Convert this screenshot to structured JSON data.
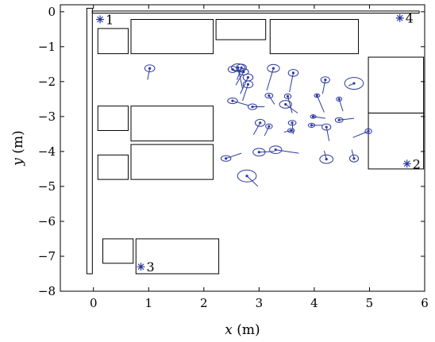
{
  "chart_data": {
    "type": "scatter",
    "xlabel": {
      "var": "x",
      "unit": " (m)"
    },
    "ylabel": {
      "var": "y",
      "unit": " (m)"
    },
    "xlim": [
      -0.6,
      6
    ],
    "ylim": [
      -8,
      0.2
    ],
    "xticks": [
      0,
      1,
      2,
      3,
      4,
      5,
      6
    ],
    "yticks": [
      0,
      -1,
      -2,
      -3,
      -4,
      -5,
      -6,
      -7,
      -8
    ],
    "ytick_labels": [
      "0",
      "−1",
      "−2",
      "−3",
      "−4",
      "−5",
      "−6",
      "−7",
      "−8"
    ],
    "grid": false,
    "colors": {
      "estimates": "#2b3a9e",
      "walls": "#000000"
    },
    "anchors": [
      {
        "label": "1",
        "x": 0.12,
        "y": -0.22
      },
      {
        "label": "2",
        "x": 5.68,
        "y": -4.35
      },
      {
        "label": "3",
        "x": 0.86,
        "y": -7.3
      },
      {
        "label": "4",
        "x": 5.55,
        "y": -0.18
      }
    ],
    "obstacles": [
      {
        "x0": -0.12,
        "x1": -0.02,
        "y0": -7.5,
        "y1": 0.1
      },
      {
        "x0": -0.02,
        "x1": 5.9,
        "y0": 0.02,
        "y1": -0.04
      },
      {
        "x0": 0.08,
        "x1": 0.63,
        "y0": -0.48,
        "y1": -1.2
      },
      {
        "x0": 0.68,
        "x1": 2.17,
        "y0": -0.22,
        "y1": -1.2
      },
      {
        "x0": 2.22,
        "x1": 3.12,
        "y0": -0.22,
        "y1": -0.8
      },
      {
        "x0": 3.2,
        "x1": 4.8,
        "y0": -0.22,
        "y1": -1.2
      },
      {
        "x0": 4.98,
        "x1": 5.98,
        "y0": -1.3,
        "y1": -2.9
      },
      {
        "x0": 4.98,
        "x1": 5.98,
        "y0": -2.9,
        "y1": -4.5
      },
      {
        "x0": 0.08,
        "x1": 0.63,
        "y0": -2.7,
        "y1": -3.4
      },
      {
        "x0": 0.68,
        "x1": 2.17,
        "y0": -2.7,
        "y1": -3.7
      },
      {
        "x0": 0.08,
        "x1": 0.63,
        "y0": -4.1,
        "y1": -4.8
      },
      {
        "x0": 0.68,
        "x1": 2.17,
        "y0": -3.8,
        "y1": -4.8
      },
      {
        "x0": 0.17,
        "x1": 0.72,
        "y0": -6.5,
        "y1": -7.2
      },
      {
        "x0": 0.77,
        "x1": 2.27,
        "y0": -6.5,
        "y1": -7.5
      }
    ],
    "estimates": [
      {
        "cx": 1.02,
        "cy": -1.62,
        "rx": 0.09,
        "ry": 0.1,
        "tx": 0.98,
        "ty": -1.95
      },
      {
        "cx": 2.62,
        "cy": -1.6,
        "rx": 0.12,
        "ry": 0.11,
        "tx": 2.7,
        "ty": -2.2
      },
      {
        "cx": 2.68,
        "cy": -1.6,
        "rx": 0.09,
        "ry": 0.1,
        "tx": 2.6,
        "ty": -1.95
      },
      {
        "cx": 2.52,
        "cy": -1.65,
        "rx": 0.08,
        "ry": 0.09,
        "tx": 2.72,
        "ty": -1.75
      },
      {
        "cx": 2.72,
        "cy": -1.72,
        "rx": 0.09,
        "ry": 0.09,
        "tx": 2.58,
        "ty": -2.1
      },
      {
        "cx": 2.8,
        "cy": -1.88,
        "rx": 0.09,
        "ry": 0.1,
        "tx": 2.66,
        "ty": -2.35
      },
      {
        "cx": 2.8,
        "cy": -2.08,
        "rx": 0.09,
        "ry": 0.1,
        "tx": 2.7,
        "ty": -2.55
      },
      {
        "cx": 3.26,
        "cy": -1.62,
        "rx": 0.11,
        "ry": 0.11,
        "tx": 3.14,
        "ty": -2.25
      },
      {
        "cx": 3.62,
        "cy": -1.75,
        "rx": 0.09,
        "ry": 0.1,
        "tx": 3.55,
        "ty": -2.3
      },
      {
        "cx": 4.2,
        "cy": -1.95,
        "rx": 0.08,
        "ry": 0.09,
        "tx": 4.15,
        "ty": -2.35
      },
      {
        "cx": 4.72,
        "cy": -2.05,
        "rx": 0.17,
        "ry": 0.17,
        "tx": 4.62,
        "ty": -2.12
      },
      {
        "cx": 2.52,
        "cy": -2.55,
        "rx": 0.09,
        "ry": 0.08,
        "tx": 2.8,
        "ty": -2.68
      },
      {
        "cx": 2.88,
        "cy": -2.72,
        "rx": 0.08,
        "ry": 0.08,
        "tx": 3.1,
        "ty": -2.72
      },
      {
        "cx": 3.18,
        "cy": -2.4,
        "rx": 0.07,
        "ry": 0.07,
        "tx": 3.28,
        "ty": -2.65
      },
      {
        "cx": 3.52,
        "cy": -2.42,
        "rx": 0.06,
        "ry": 0.07,
        "tx": 3.6,
        "ty": -2.9
      },
      {
        "cx": 3.48,
        "cy": -2.65,
        "rx": 0.11,
        "ry": 0.11,
        "tx": 3.7,
        "ty": -2.9
      },
      {
        "cx": 4.05,
        "cy": -2.4,
        "rx": 0.05,
        "ry": 0.05,
        "tx": 4.18,
        "ty": -2.88
      },
      {
        "cx": 4.45,
        "cy": -2.5,
        "rx": 0.05,
        "ry": 0.06,
        "tx": 4.52,
        "ty": -2.85
      },
      {
        "cx": 3.02,
        "cy": -3.18,
        "rx": 0.09,
        "ry": 0.1,
        "tx": 2.9,
        "ty": -3.52
      },
      {
        "cx": 3.18,
        "cy": -3.28,
        "rx": 0.06,
        "ry": 0.07,
        "tx": 3.1,
        "ty": -3.55
      },
      {
        "cx": 3.6,
        "cy": -3.18,
        "rx": 0.07,
        "ry": 0.07,
        "tx": 3.62,
        "ty": -3.5
      },
      {
        "cx": 3.98,
        "cy": -3.0,
        "rx": 0.05,
        "ry": 0.05,
        "tx": 4.2,
        "ty": -3.05
      },
      {
        "cx": 4.45,
        "cy": -3.1,
        "rx": 0.07,
        "ry": 0.07,
        "tx": 4.72,
        "ty": -3.05
      },
      {
        "cx": 3.95,
        "cy": -3.25,
        "rx": 0.06,
        "ry": 0.06,
        "tx": 4.15,
        "ty": -3.25
      },
      {
        "cx": 4.22,
        "cy": -3.3,
        "rx": 0.08,
        "ry": 0.09,
        "tx": 4.27,
        "ty": -3.7
      },
      {
        "cx": 4.98,
        "cy": -3.42,
        "rx": 0.06,
        "ry": 0.07,
        "tx": 4.7,
        "ty": -3.6
      },
      {
        "cx": 3.58,
        "cy": -3.4,
        "rx": 0.06,
        "ry": 0.06,
        "tx": 3.45,
        "ty": -3.45
      },
      {
        "cx": 3.0,
        "cy": -4.02,
        "rx": 0.11,
        "ry": 0.11,
        "tx": 3.28,
        "ty": -4.0
      },
      {
        "cx": 3.3,
        "cy": -3.95,
        "rx": 0.11,
        "ry": 0.11,
        "tx": 3.72,
        "ty": -4.05
      },
      {
        "cx": 2.4,
        "cy": -4.2,
        "rx": 0.09,
        "ry": 0.08,
        "tx": 2.68,
        "ty": -4.05
      },
      {
        "cx": 4.22,
        "cy": -4.22,
        "rx": 0.12,
        "ry": 0.12,
        "tx": 4.18,
        "ty": -3.98
      },
      {
        "cx": 4.72,
        "cy": -4.2,
        "rx": 0.08,
        "ry": 0.1,
        "tx": 4.68,
        "ty": -3.95
      },
      {
        "cx": 2.78,
        "cy": -4.7,
        "rx": 0.17,
        "ry": 0.17,
        "tx": 2.98,
        "ty": -5.0
      }
    ]
  }
}
